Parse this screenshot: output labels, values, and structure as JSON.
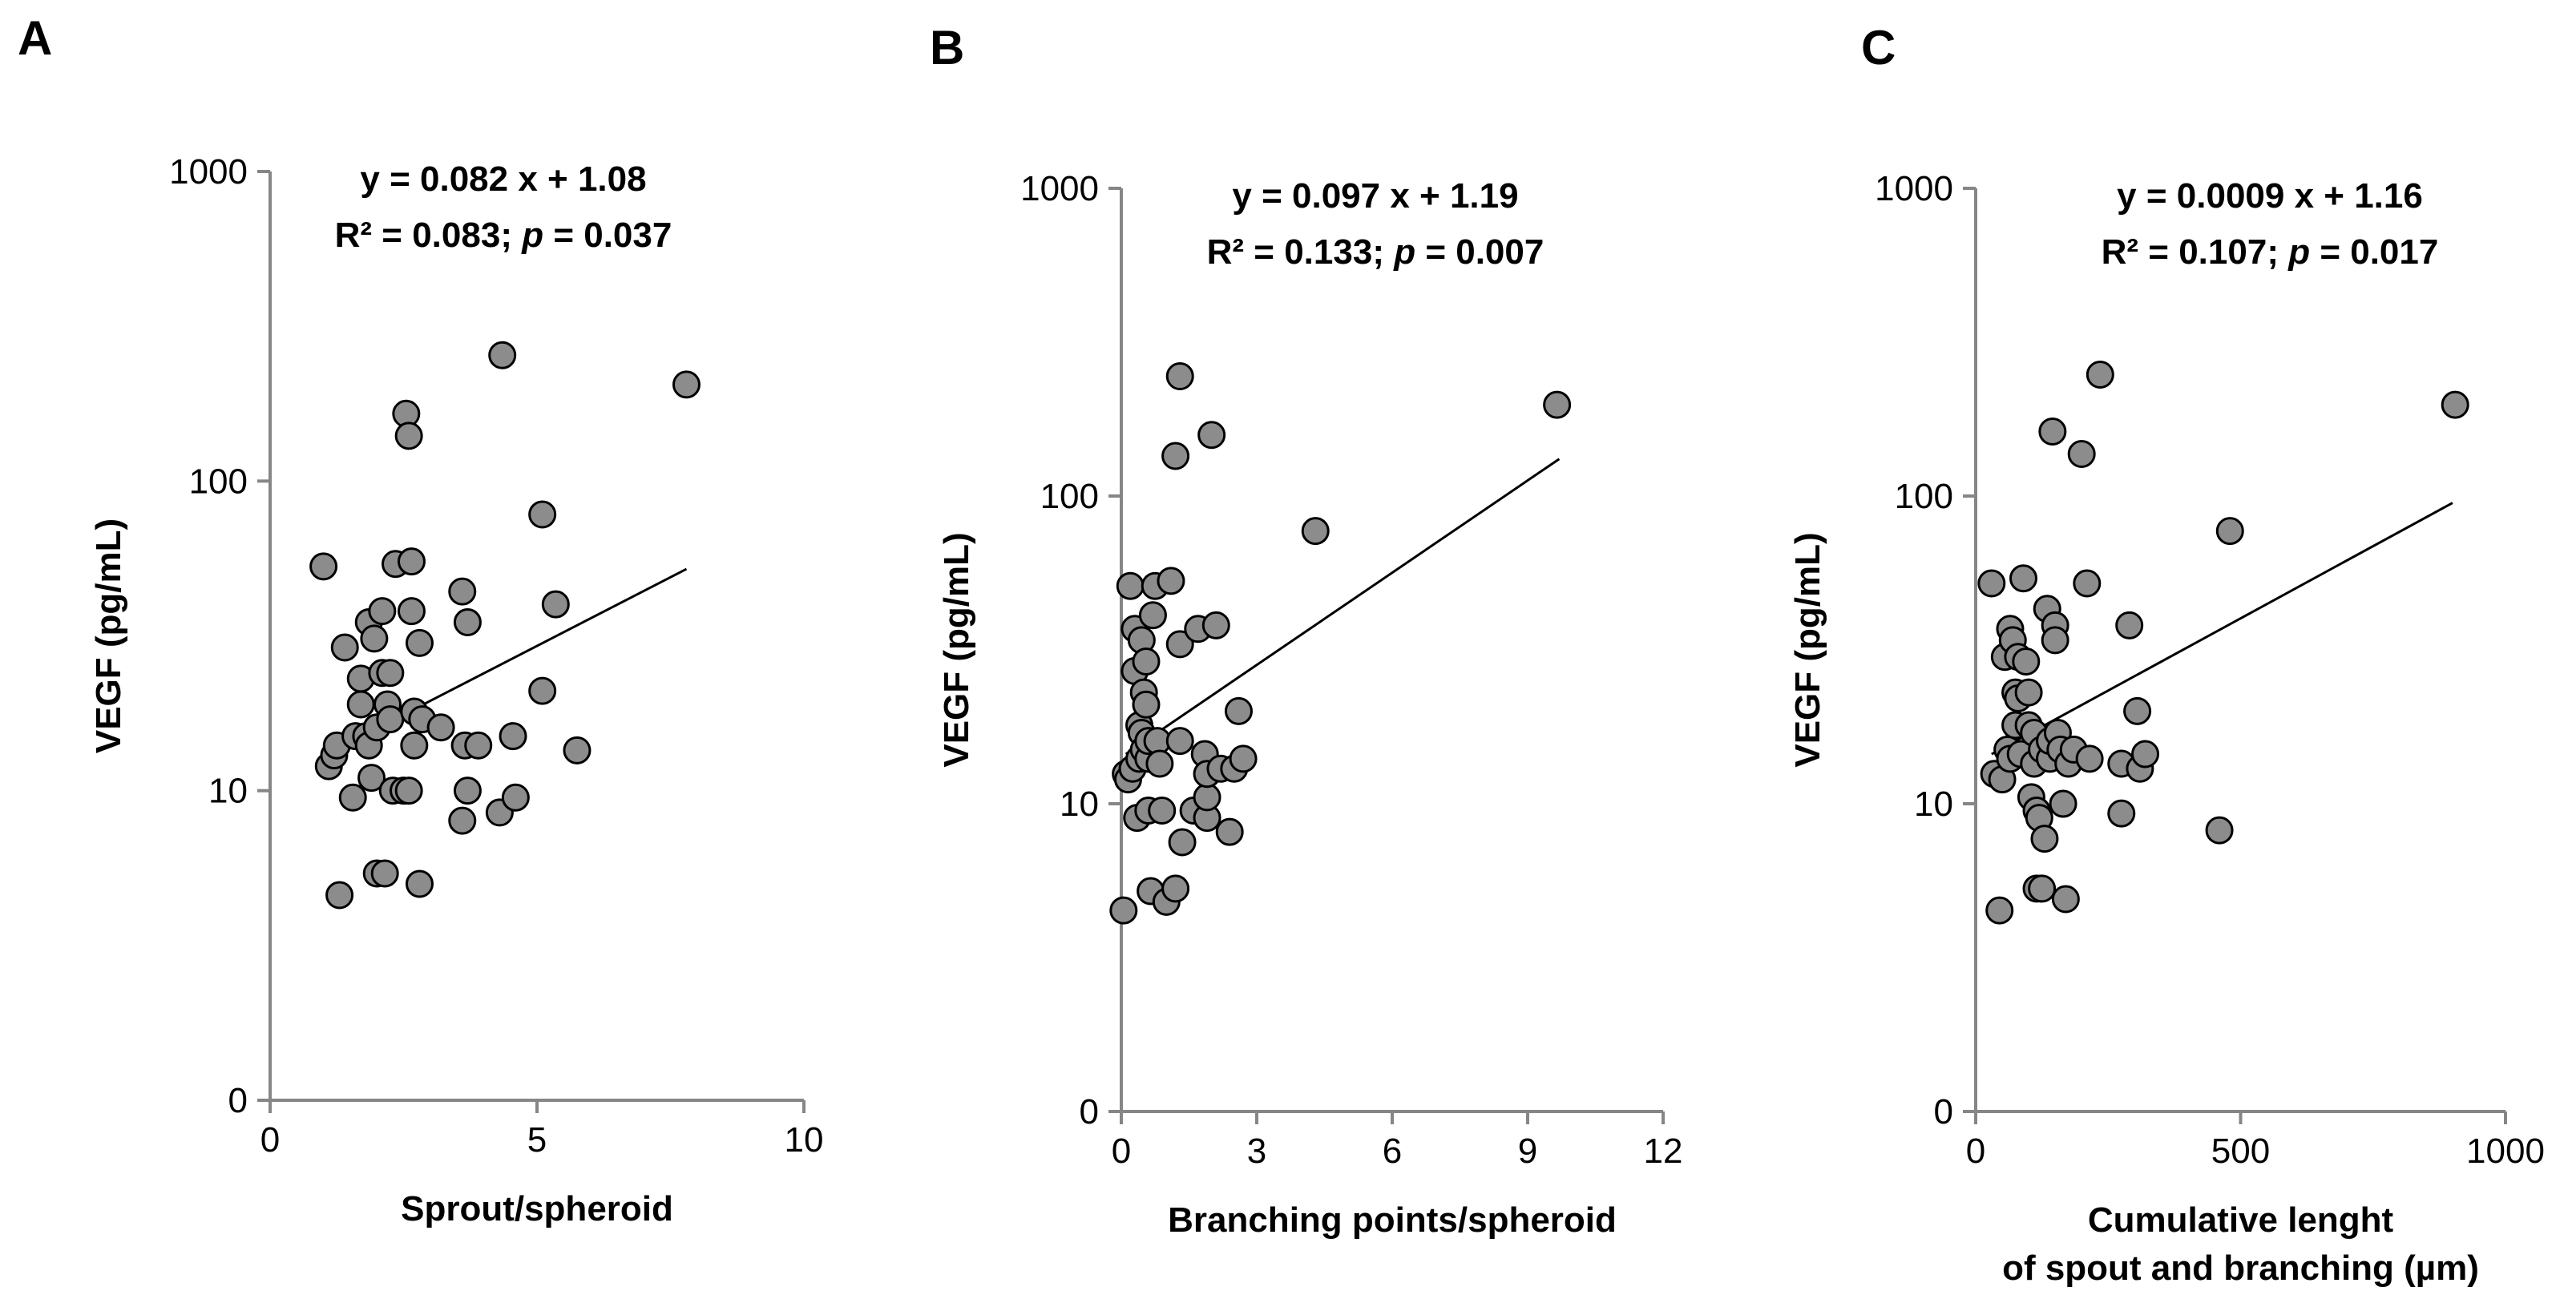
{
  "chart_data": [
    {
      "type": "scatter",
      "panel": "A",
      "title": "",
      "equation": "y = 0.082 x + 1.08",
      "r2_text": "R² = 0.083; ",
      "p_label": "p",
      "p_text": " = 0.037",
      "xlabel": "Sprout/spheroid",
      "ylabel": "VEGF (pg/mL)",
      "xlim": [
        0,
        10
      ],
      "xticks": [
        0,
        5,
        10
      ],
      "yscale": "log",
      "yticks": [
        {
          "value": 1,
          "label": "0"
        },
        {
          "value": 10,
          "label": "10"
        },
        {
          "value": 100,
          "label": "100"
        },
        {
          "value": 1000,
          "label": "1000"
        }
      ],
      "ylim": [
        1,
        1000
      ],
      "fit_line": {
        "x": [
          1.2,
          7.8
        ],
        "y": [
          13.5,
          52
        ]
      },
      "points": [
        [
          1.0,
          53
        ],
        [
          1.1,
          12
        ],
        [
          1.2,
          13
        ],
        [
          1.25,
          14
        ],
        [
          1.3,
          4.6
        ],
        [
          1.4,
          29
        ],
        [
          1.55,
          9.5
        ],
        [
          1.6,
          15
        ],
        [
          1.7,
          23
        ],
        [
          1.7,
          19
        ],
        [
          1.8,
          15
        ],
        [
          1.85,
          14
        ],
        [
          1.85,
          35
        ],
        [
          1.9,
          11
        ],
        [
          1.95,
          31
        ],
        [
          2.0,
          5.4
        ],
        [
          2.0,
          16
        ],
        [
          2.1,
          38
        ],
        [
          2.1,
          24
        ],
        [
          2.15,
          5.4
        ],
        [
          2.2,
          19
        ],
        [
          2.25,
          17
        ],
        [
          2.25,
          24
        ],
        [
          2.3,
          10
        ],
        [
          2.35,
          54
        ],
        [
          2.5,
          10
        ],
        [
          2.55,
          165
        ],
        [
          2.6,
          140
        ],
        [
          2.6,
          10
        ],
        [
          2.65,
          55
        ],
        [
          2.65,
          38
        ],
        [
          2.7,
          18
        ],
        [
          2.7,
          14
        ],
        [
          2.8,
          30
        ],
        [
          2.8,
          5.0
        ],
        [
          2.85,
          17
        ],
        [
          3.2,
          16
        ],
        [
          3.6,
          8
        ],
        [
          3.6,
          44
        ],
        [
          3.65,
          14
        ],
        [
          3.7,
          10
        ],
        [
          3.7,
          35
        ],
        [
          3.9,
          14
        ],
        [
          4.3,
          8.5
        ],
        [
          4.35,
          255
        ],
        [
          4.55,
          15
        ],
        [
          4.6,
          9.5
        ],
        [
          5.1,
          21
        ],
        [
          5.1,
          78
        ],
        [
          5.35,
          40
        ],
        [
          5.75,
          13.5
        ],
        [
          7.8,
          205
        ]
      ]
    },
    {
      "type": "scatter",
      "panel": "B",
      "title": "",
      "equation": "y = 0.097 x + 1.19",
      "r2_text": "R² = 0.133; ",
      "p_label": "p",
      "p_text": " = 0.007",
      "xlabel": "Branching points/spheroid",
      "ylabel": "VEGF (pg/mL)",
      "xlim": [
        0,
        12
      ],
      "xticks": [
        0,
        3,
        6,
        9,
        12
      ],
      "yscale": "log",
      "yticks": [
        {
          "value": 1,
          "label": "0"
        },
        {
          "value": 10,
          "label": "10"
        },
        {
          "value": 100,
          "label": "100"
        },
        {
          "value": 1000,
          "label": "1000"
        }
      ],
      "ylim": [
        1,
        1000
      ],
      "fit_line": {
        "x": [
          0.1,
          9.7
        ],
        "y": [
          14.5,
          132
        ]
      },
      "points": [
        [
          0.05,
          4.5
        ],
        [
          0.1,
          12.5
        ],
        [
          0.15,
          12
        ],
        [
          0.2,
          51
        ],
        [
          0.25,
          13
        ],
        [
          0.3,
          37
        ],
        [
          0.3,
          27
        ],
        [
          0.35,
          9
        ],
        [
          0.4,
          14
        ],
        [
          0.4,
          18
        ],
        [
          0.45,
          17
        ],
        [
          0.45,
          34
        ],
        [
          0.5,
          15
        ],
        [
          0.5,
          23
        ],
        [
          0.55,
          21
        ],
        [
          0.55,
          29
        ],
        [
          0.6,
          14
        ],
        [
          0.6,
          16
        ],
        [
          0.6,
          9.5
        ],
        [
          0.65,
          5.2
        ],
        [
          0.7,
          41
        ],
        [
          0.75,
          51
        ],
        [
          0.8,
          16
        ],
        [
          0.85,
          13.5
        ],
        [
          0.9,
          9.5
        ],
        [
          1.0,
          4.8
        ],
        [
          1.1,
          53
        ],
        [
          1.2,
          5.3
        ],
        [
          1.2,
          135
        ],
        [
          1.3,
          245
        ],
        [
          1.3,
          16
        ],
        [
          1.3,
          33
        ],
        [
          1.35,
          7.5
        ],
        [
          1.6,
          9.5
        ],
        [
          1.7,
          37
        ],
        [
          1.85,
          14.5
        ],
        [
          1.9,
          9
        ],
        [
          1.9,
          10.5
        ],
        [
          1.9,
          12.5
        ],
        [
          2.0,
          158
        ],
        [
          2.1,
          38
        ],
        [
          2.2,
          13
        ],
        [
          2.4,
          8.1
        ],
        [
          2.5,
          13
        ],
        [
          2.6,
          20
        ],
        [
          2.7,
          14
        ],
        [
          4.3,
          77
        ],
        [
          9.65,
          198
        ]
      ]
    },
    {
      "type": "scatter",
      "panel": "C",
      "title": "",
      "equation": "y = 0.0009 x + 1.16",
      "r2_text": "R² = 0.107; ",
      "p_label": "p",
      "p_text": " = 0.017",
      "xlabel": "Cumulative lenght",
      "xlabel2": "of spout and branching (µm)",
      "ylabel": "VEGF (pg/mL)",
      "xlim": [
        0,
        1000
      ],
      "xticks": [
        0,
        500,
        1000
      ],
      "yscale": "log",
      "yticks": [
        {
          "value": 1,
          "label": "0"
        },
        {
          "value": 10,
          "label": "10"
        },
        {
          "value": 100,
          "label": "100"
        },
        {
          "value": 1000,
          "label": "1000"
        }
      ],
      "ylim": [
        1,
        1000
      ],
      "fit_line": {
        "x": [
          30,
          900
        ],
        "y": [
          14.5,
          95
        ]
      },
      "points": [
        [
          30,
          52
        ],
        [
          35,
          12.5
        ],
        [
          45,
          4.5
        ],
        [
          50,
          12
        ],
        [
          55,
          30
        ],
        [
          60,
          15
        ],
        [
          65,
          14
        ],
        [
          65,
          37
        ],
        [
          70,
          34
        ],
        [
          75,
          23
        ],
        [
          75,
          18
        ],
        [
          80,
          22
        ],
        [
          80,
          30
        ],
        [
          85,
          14.5
        ],
        [
          90,
          54
        ],
        [
          95,
          29
        ],
        [
          100,
          18
        ],
        [
          100,
          23
        ],
        [
          105,
          10.5
        ],
        [
          110,
          13.5
        ],
        [
          110,
          17
        ],
        [
          115,
          5.3
        ],
        [
          115,
          9.5
        ],
        [
          120,
          9
        ],
        [
          125,
          15
        ],
        [
          125,
          5.3
        ],
        [
          130,
          7.7
        ],
        [
          135,
          43
        ],
        [
          140,
          14
        ],
        [
          140,
          16
        ],
        [
          145,
          162
        ],
        [
          150,
          38
        ],
        [
          150,
          34
        ],
        [
          155,
          17
        ],
        [
          160,
          15
        ],
        [
          165,
          10
        ],
        [
          170,
          4.9
        ],
        [
          175,
          13.5
        ],
        [
          185,
          15
        ],
        [
          200,
          137
        ],
        [
          210,
          52
        ],
        [
          215,
          14
        ],
        [
          235,
          248
        ],
        [
          275,
          9.3
        ],
        [
          275,
          13.5
        ],
        [
          290,
          38
        ],
        [
          305,
          20
        ],
        [
          310,
          13
        ],
        [
          320,
          14.5
        ],
        [
          460,
          8.2
        ],
        [
          480,
          77
        ],
        [
          905,
          198
        ]
      ]
    }
  ]
}
